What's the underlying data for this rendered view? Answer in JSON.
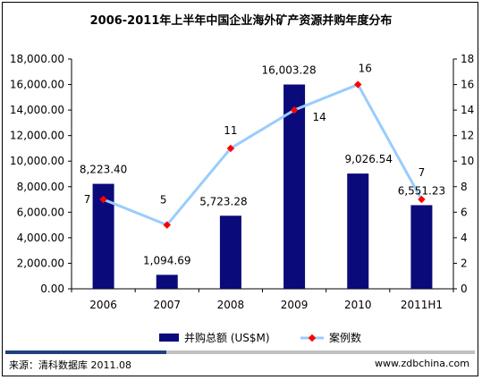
{
  "colors": {
    "bar": "#0A0A7A",
    "line": "#99CCFF",
    "marker": "#FF0000",
    "axis": "#000000",
    "footer_dark": "#1F3F7F",
    "footer_light": "#C0C0C0"
  },
  "chart_data": {
    "type": "bar",
    "title": "2006-2011年上半年中国企业海外矿产资源并购年度分布",
    "categories": [
      "2006",
      "2007",
      "2008",
      "2009",
      "2010",
      "2011H1"
    ],
    "series": [
      {
        "name": "并购总额 (US$M)",
        "type": "bar",
        "axis": "left",
        "values": [
          8223.4,
          1094.69,
          5723.28,
          16003.28,
          9026.54,
          6551.23
        ],
        "labels": [
          "8,223.40",
          "1,094.69",
          "5,723.28",
          "16,003.28",
          "9,026.54",
          "6,551.23"
        ]
      },
      {
        "name": "案例数",
        "type": "line",
        "axis": "right",
        "values": [
          7,
          5,
          11,
          14,
          16,
          7
        ],
        "labels": [
          "7",
          "5",
          "11",
          "14",
          "16",
          "7"
        ]
      }
    ],
    "ylim_left": [
      0,
      18000
    ],
    "yticks_left": [
      "0.00",
      "2,000.00",
      "4,000.00",
      "6,000.00",
      "8,000.00",
      "10,000.00",
      "12,000.00",
      "14,000.00",
      "16,000.00",
      "18,000.00"
    ],
    "ylim_right": [
      0,
      18
    ],
    "yticks_right": [
      "0",
      "2",
      "4",
      "6",
      "8",
      "10",
      "12",
      "14",
      "16",
      "18"
    ],
    "legend_position": "bottom",
    "grid": false
  },
  "footer": {
    "source": "来源：清科数据库 2011.08",
    "site": "www.zdbchina.com"
  }
}
